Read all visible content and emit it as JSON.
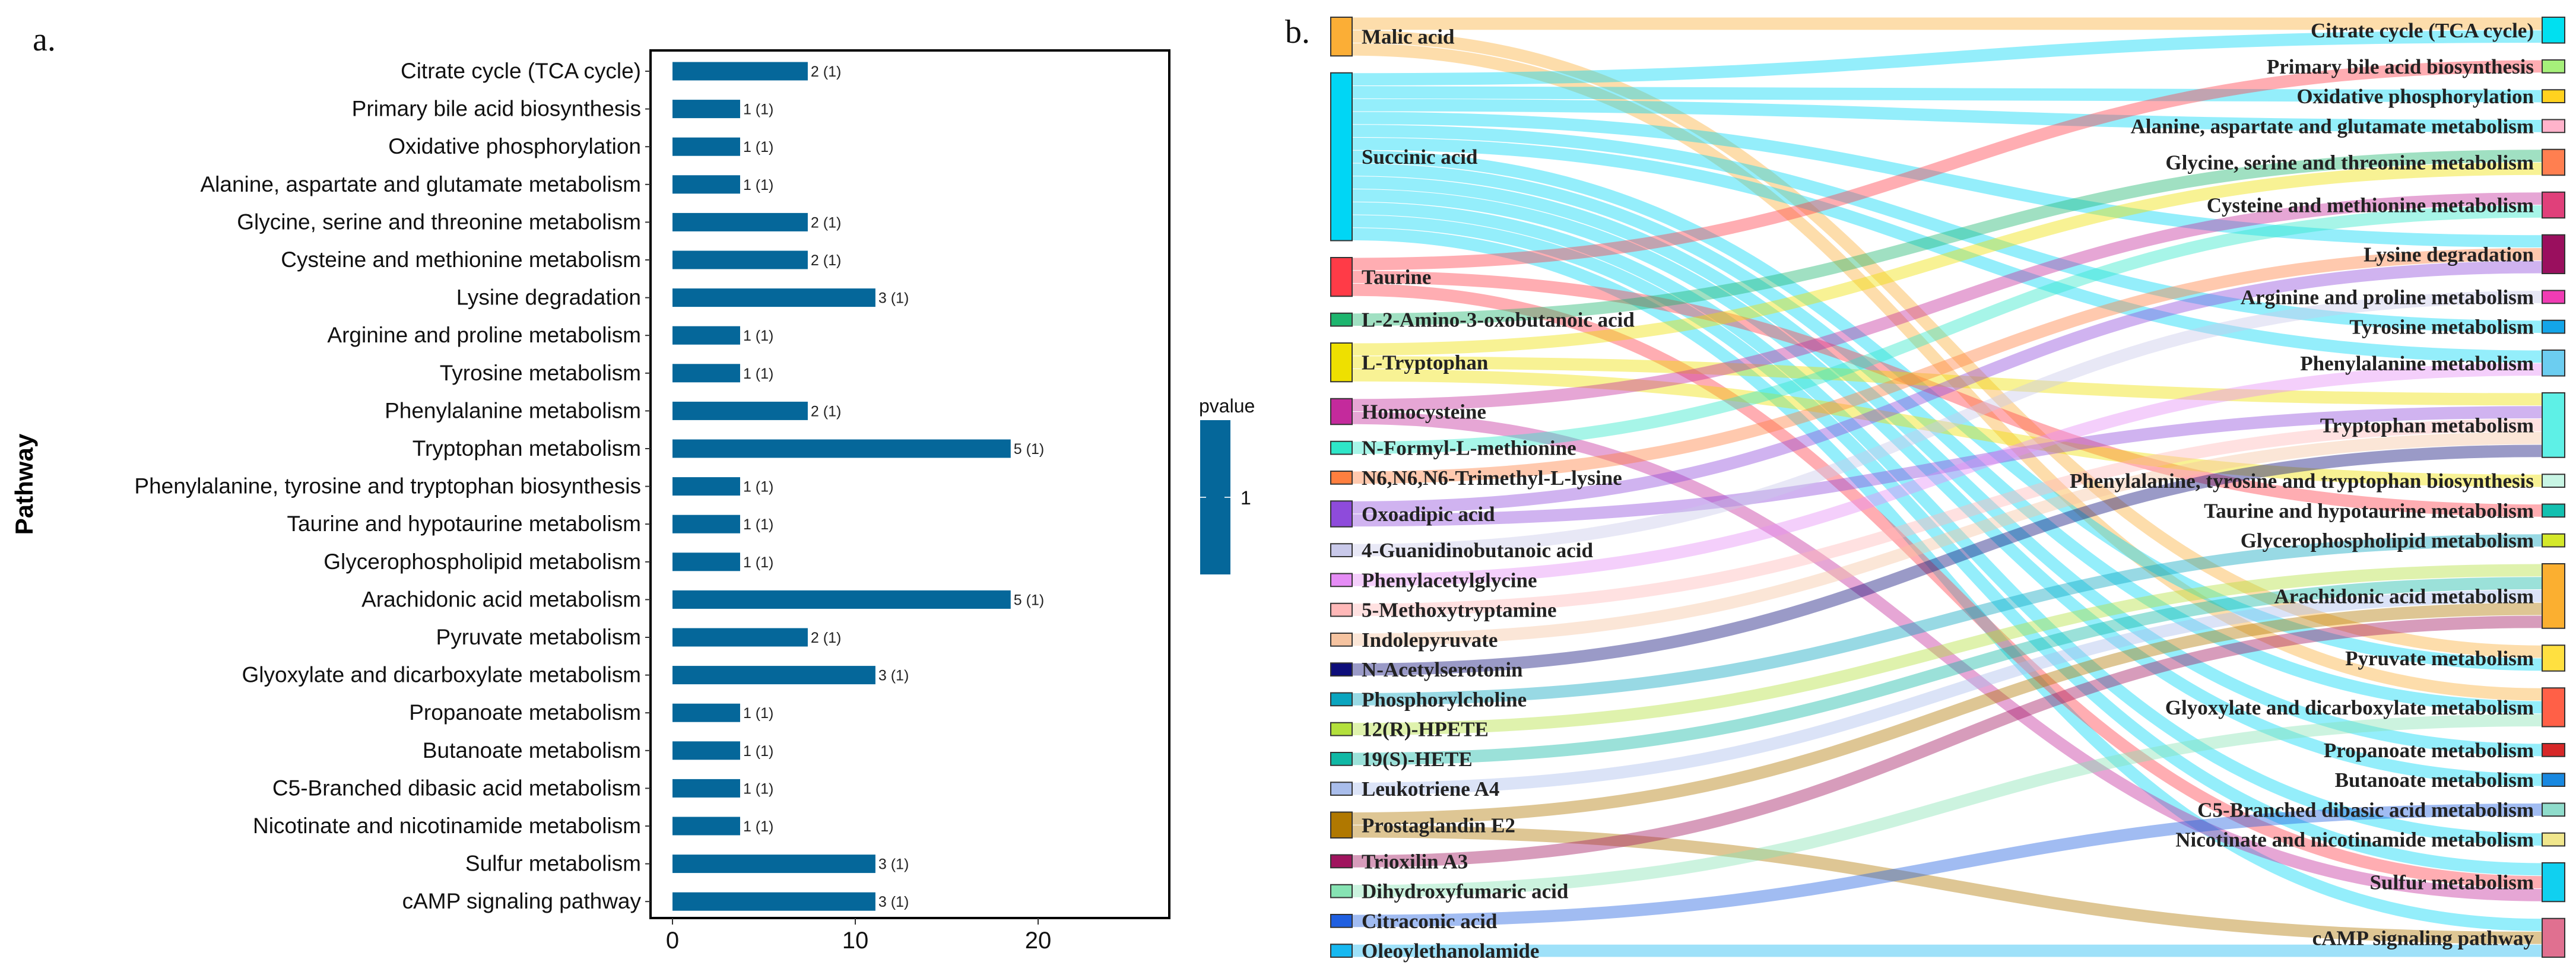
{
  "chart_data": [
    {
      "type": "bar",
      "panel_label": "a.",
      "orientation": "horizontal",
      "ylabel": "Pathway",
      "xlabel": "",
      "xlim": [
        0,
        27
      ],
      "xticks": [
        "0",
        "10",
        "20"
      ],
      "xtick_values": [
        0,
        10,
        20
      ],
      "bar_color": "#05679A",
      "categories": [
        "Citrate cycle (TCA cycle)",
        "Primary bile acid biosynthesis",
        "Oxidative phosphorylation",
        "Alanine, aspartate and glutamate metabolism",
        "Glycine, serine and threonine metabolism",
        "Cysteine and methionine metabolism",
        "Lysine degradation",
        "Arginine and proline metabolism",
        "Tyrosine metabolism",
        "Phenylalanine metabolism",
        "Tryptophan metabolism",
        "Phenylalanine, tyrosine and tryptophan biosynthesis",
        "Taurine and hypotaurine metabolism",
        "Glycerophospholipid metabolism",
        "Arachidonic acid metabolism",
        "Pyruvate metabolism",
        "Glyoxylate and dicarboxylate metabolism",
        "Propanoate metabolism",
        "Butanoate metabolism",
        "C5-Branched dibasic acid metabolism",
        "Nicotinate and nicotinamide metabolism",
        "Sulfur metabolism",
        "cAMP signaling pathway"
      ],
      "values": [
        7.4,
        3.7,
        3.7,
        3.7,
        7.4,
        7.4,
        11.1,
        3.7,
        3.7,
        7.4,
        18.5,
        3.7,
        3.7,
        3.7,
        18.5,
        7.4,
        11.1,
        3.7,
        3.7,
        3.7,
        3.7,
        11.1,
        11.1
      ],
      "data_labels": [
        "2 (1)",
        "1 (1)",
        "1 (1)",
        "1 (1)",
        "2 (1)",
        "2 (1)",
        "3 (1)",
        "1 (1)",
        "1 (1)",
        "2 (1)",
        "5 (1)",
        "1 (1)",
        "1 (1)",
        "1 (1)",
        "5 (1)",
        "2 (1)",
        "3 (1)",
        "1 (1)",
        "1 (1)",
        "1 (1)",
        "1 (1)",
        "3 (1)",
        "3 (1)"
      ],
      "legend": {
        "title": "pvalue",
        "ticks": [
          "1"
        ],
        "placement": "right"
      }
    },
    {
      "type": "sankey",
      "panel_label": "b.",
      "sources": [
        {
          "name": "Malic acid",
          "color": "#FBAE36"
        },
        {
          "name": "Succinic acid",
          "color": "#00D6F5"
        },
        {
          "name": "Taurine",
          "color": "#FF3B47"
        },
        {
          "name": "L-2-Amino-3-oxobutanoic acid",
          "color": "#1DB56E"
        },
        {
          "name": "L-Tryptophan",
          "color": "#EEE000"
        },
        {
          "name": "Homocysteine",
          "color": "#C42A9C"
        },
        {
          "name": "N-Formyl-L-methionine",
          "color": "#2EE6C8"
        },
        {
          "name": "N6,N6,N6-Trimethyl-L-lysine",
          "color": "#FF7F3F"
        },
        {
          "name": "Oxoadipic acid",
          "color": "#8E4BDB"
        },
        {
          "name": "4-Guanidinobutanoic acid",
          "color": "#C9C9EA"
        },
        {
          "name": "Phenylacetylglycine",
          "color": "#E58CF5"
        },
        {
          "name": "5-Methoxytryptamine",
          "color": "#FFB8B8"
        },
        {
          "name": "Indolepyruvate",
          "color": "#F5C3A0"
        },
        {
          "name": "N-Acetylserotonin",
          "color": "#0E0E7A"
        },
        {
          "name": "Phosphorylcholine",
          "color": "#0AA5BF"
        },
        {
          "name": "12(R)-HPETE",
          "color": "#B3E03C"
        },
        {
          "name": "19(S)-HETE",
          "color": "#10B8A5"
        },
        {
          "name": "Leukotriene A4",
          "color": "#A9BDEB"
        },
        {
          "name": "Prostaglandin E2",
          "color": "#B07800"
        },
        {
          "name": "Trioxilin A3",
          "color": "#A0145E"
        },
        {
          "name": "Dihydroxyfumaric acid",
          "color": "#86E3B3"
        },
        {
          "name": "Citraconic acid",
          "color": "#1F5FE0"
        },
        {
          "name": "Oleoylethanolamide",
          "color": "#17B8F0"
        }
      ],
      "targets": [
        {
          "name": "Citrate cycle (TCA cycle)",
          "color": "#00E0F0"
        },
        {
          "name": "Primary bile acid biosynthesis",
          "color": "#A6F07A"
        },
        {
          "name": "Oxidative phosphorylation",
          "color": "#FFD21F"
        },
        {
          "name": "Alanine, aspartate and glutamate metabolism",
          "color": "#FFB3CB"
        },
        {
          "name": "Glycine, serine and threonine metabolism",
          "color": "#FF7F50"
        },
        {
          "name": "Cysteine and methionine metabolism",
          "color": "#E0407A"
        },
        {
          "name": "Lysine degradation",
          "color": "#9A0F5E"
        },
        {
          "name": "Arginine and proline metabolism",
          "color": "#F03CB4"
        },
        {
          "name": "Tyrosine metabolism",
          "color": "#13A5E8"
        },
        {
          "name": "Phenylalanine metabolism",
          "color": "#6CCDF0"
        },
        {
          "name": "Tryptophan metabolism",
          "color": "#5EF0E6"
        },
        {
          "name": "Phenylalanine, tyrosine and tryptophan biosynthesis",
          "color": "#C8F5E4"
        },
        {
          "name": "Taurine and hypotaurine metabolism",
          "color": "#13C0B0"
        },
        {
          "name": "Glycerophospholipid metabolism",
          "color": "#D4E82A"
        },
        {
          "name": "Arachidonic acid metabolism",
          "color": "#FBAF30"
        },
        {
          "name": "Pyruvate metabolism",
          "color": "#FFE040"
        },
        {
          "name": "Glyoxylate and dicarboxylate metabolism",
          "color": "#FF6047"
        },
        {
          "name": "Propanoate metabolism",
          "color": "#D62828"
        },
        {
          "name": "Butanoate metabolism",
          "color": "#1888E0"
        },
        {
          "name": "C5-Branched dibasic acid metabolism",
          "color": "#8FDCCB"
        },
        {
          "name": "Nicotinate and nicotinamide metabolism",
          "color": "#F0E68C"
        },
        {
          "name": "Sulfur metabolism",
          "color": "#10D0F0"
        },
        {
          "name": "cAMP signaling pathway",
          "color": "#E07090"
        }
      ],
      "links": [
        [
          0,
          0
        ],
        [
          0,
          15
        ],
        [
          0,
          16
        ],
        [
          1,
          0
        ],
        [
          1,
          2
        ],
        [
          1,
          3
        ],
        [
          1,
          6
        ],
        [
          1,
          8
        ],
        [
          1,
          9
        ],
        [
          1,
          15
        ],
        [
          1,
          16
        ],
        [
          1,
          17
        ],
        [
          1,
          18
        ],
        [
          1,
          20
        ],
        [
          1,
          21
        ],
        [
          1,
          22
        ],
        [
          2,
          1
        ],
        [
          2,
          12
        ],
        [
          2,
          21
        ],
        [
          3,
          4
        ],
        [
          4,
          4
        ],
        [
          4,
          10
        ],
        [
          4,
          11
        ],
        [
          5,
          5
        ],
        [
          5,
          21
        ],
        [
          6,
          5
        ],
        [
          7,
          6
        ],
        [
          8,
          6
        ],
        [
          8,
          10
        ],
        [
          9,
          7
        ],
        [
          10,
          9
        ],
        [
          11,
          10
        ],
        [
          12,
          10
        ],
        [
          13,
          10
        ],
        [
          14,
          13
        ],
        [
          15,
          14
        ],
        [
          16,
          14
        ],
        [
          17,
          14
        ],
        [
          18,
          14
        ],
        [
          18,
          22
        ],
        [
          19,
          14
        ],
        [
          20,
          16
        ],
        [
          21,
          19
        ],
        [
          22,
          22
        ]
      ]
    }
  ]
}
